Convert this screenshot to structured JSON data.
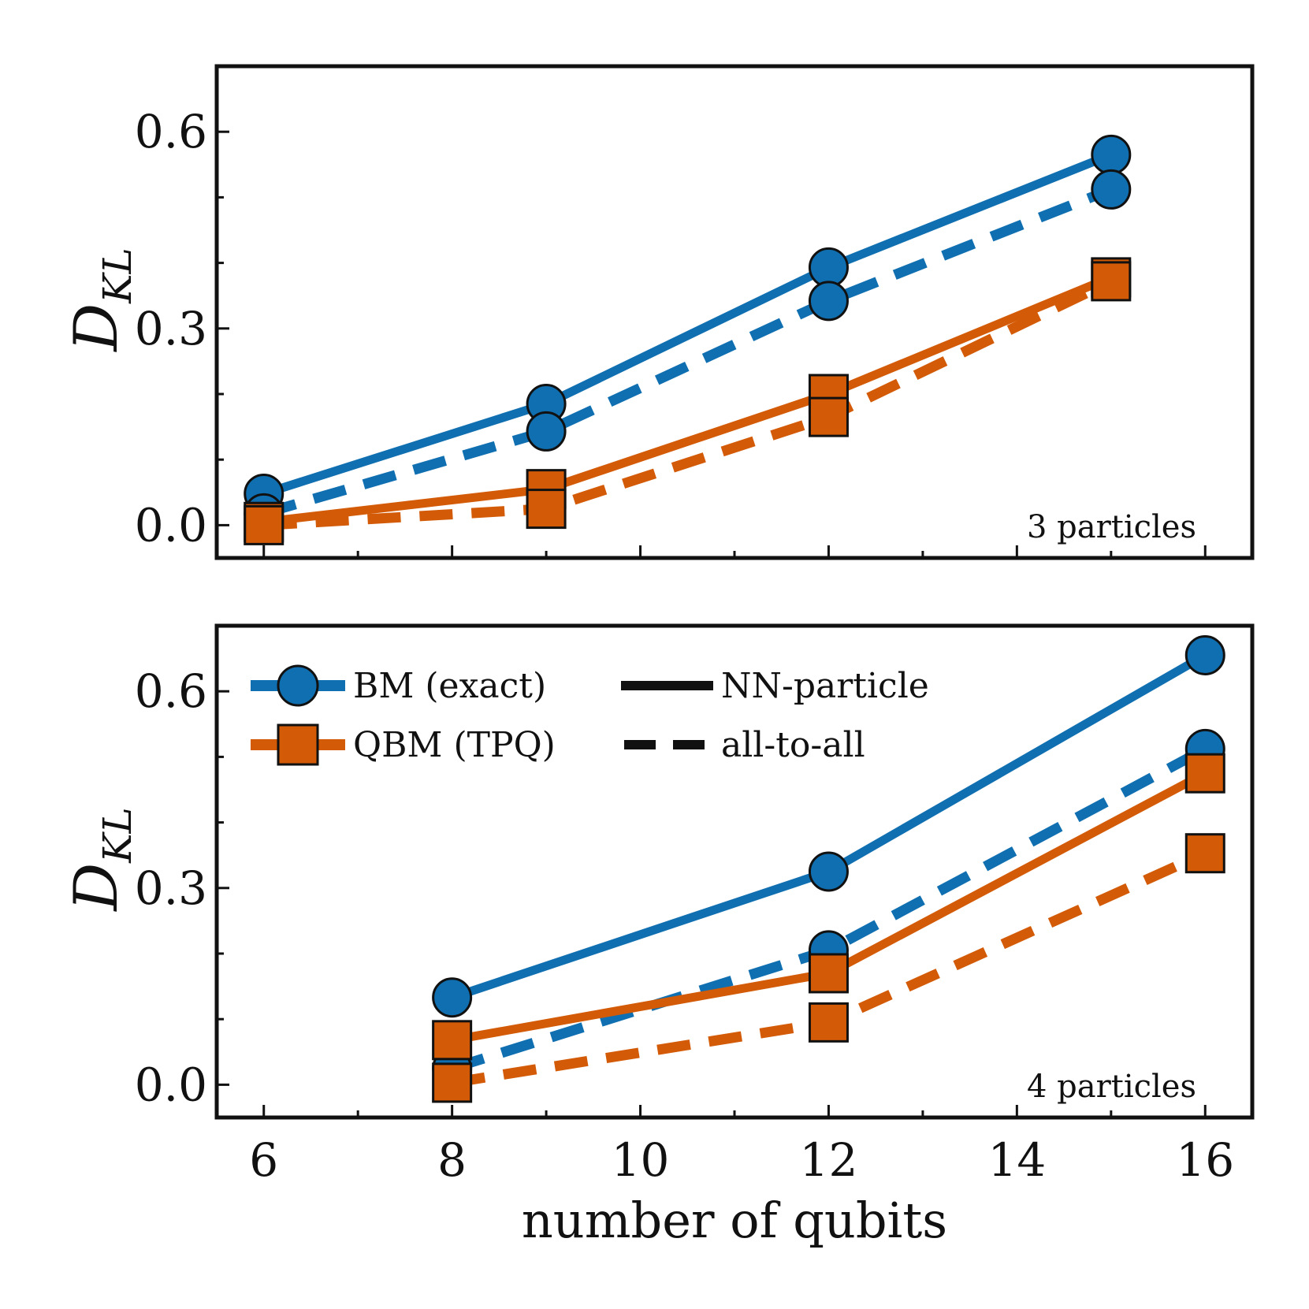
{
  "colors": {
    "bm": "#0f6fb0",
    "qbm": "#d35a06",
    "axes": "#111111"
  },
  "chart_data": [
    {
      "type": "line",
      "panel": "top",
      "annotation": "3 particles",
      "xlabel": "",
      "ylabel_main": "D",
      "ylabel_sub": "KL",
      "xlim": [
        5.5,
        16.5
      ],
      "ylim": [
        -0.05,
        0.7
      ],
      "xticks": [
        6,
        8,
        10,
        12,
        14,
        16
      ],
      "yticks": [
        0.0,
        0.3,
        0.6
      ],
      "yticklabels": [
        "0.0",
        "0.3",
        "0.6"
      ],
      "series": [
        {
          "name": "BM (exact), NN-particle",
          "model": "bm",
          "style": "solid",
          "x": [
            6,
            9,
            12,
            15
          ],
          "y": [
            0.048,
            0.185,
            0.393,
            0.565
          ]
        },
        {
          "name": "BM (exact), all-to-all",
          "model": "bm",
          "style": "dashed",
          "x": [
            6,
            9,
            12,
            15
          ],
          "y": [
            0.018,
            0.143,
            0.342,
            0.512
          ]
        },
        {
          "name": "QBM (TPQ), NN-particle",
          "model": "qbm",
          "style": "solid",
          "x": [
            6,
            9,
            12,
            15
          ],
          "y": [
            0.005,
            0.055,
            0.2,
            0.378
          ]
        },
        {
          "name": "QBM (TPQ), all-to-all",
          "model": "qbm",
          "style": "dashed",
          "x": [
            6,
            9,
            12,
            15
          ],
          "y": [
            0.0,
            0.025,
            0.165,
            0.372
          ]
        }
      ]
    },
    {
      "type": "line",
      "panel": "bottom",
      "annotation": "4 particles",
      "xlabel": "number of qubits",
      "ylabel_main": "D",
      "ylabel_sub": "KL",
      "xlim": [
        5.5,
        16.5
      ],
      "ylim": [
        -0.05,
        0.7
      ],
      "xticks": [
        6,
        8,
        10,
        12,
        14,
        16
      ],
      "xticklabels": [
        "6",
        "8",
        "10",
        "12",
        "14",
        "16"
      ],
      "yticks": [
        0.0,
        0.3,
        0.6
      ],
      "yticklabels": [
        "0.0",
        "0.3",
        "0.6"
      ],
      "series": [
        {
          "name": "BM (exact), NN-particle",
          "model": "bm",
          "style": "solid",
          "x": [
            8,
            12,
            16
          ],
          "y": [
            0.133,
            0.325,
            0.655
          ]
        },
        {
          "name": "BM (exact), all-to-all",
          "model": "bm",
          "style": "dashed",
          "x": [
            8,
            12,
            16
          ],
          "y": [
            0.025,
            0.205,
            0.512
          ]
        },
        {
          "name": "QBM (TPQ), NN-particle",
          "model": "qbm",
          "style": "solid",
          "x": [
            8,
            12,
            16
          ],
          "y": [
            0.068,
            0.17,
            0.475
          ]
        },
        {
          "name": "QBM (TPQ), all-to-all",
          "model": "qbm",
          "style": "dashed",
          "x": [
            8,
            12,
            16
          ],
          "y": [
            0.003,
            0.095,
            0.353
          ]
        }
      ],
      "legend": {
        "models": [
          {
            "label": "BM (exact)",
            "model": "bm"
          },
          {
            "label": "QBM (TPQ)",
            "model": "qbm"
          }
        ],
        "styles": [
          {
            "label": "NN-particle",
            "style": "solid"
          },
          {
            "label": "all-to-all",
            "style": "dashed"
          }
        ]
      }
    }
  ]
}
